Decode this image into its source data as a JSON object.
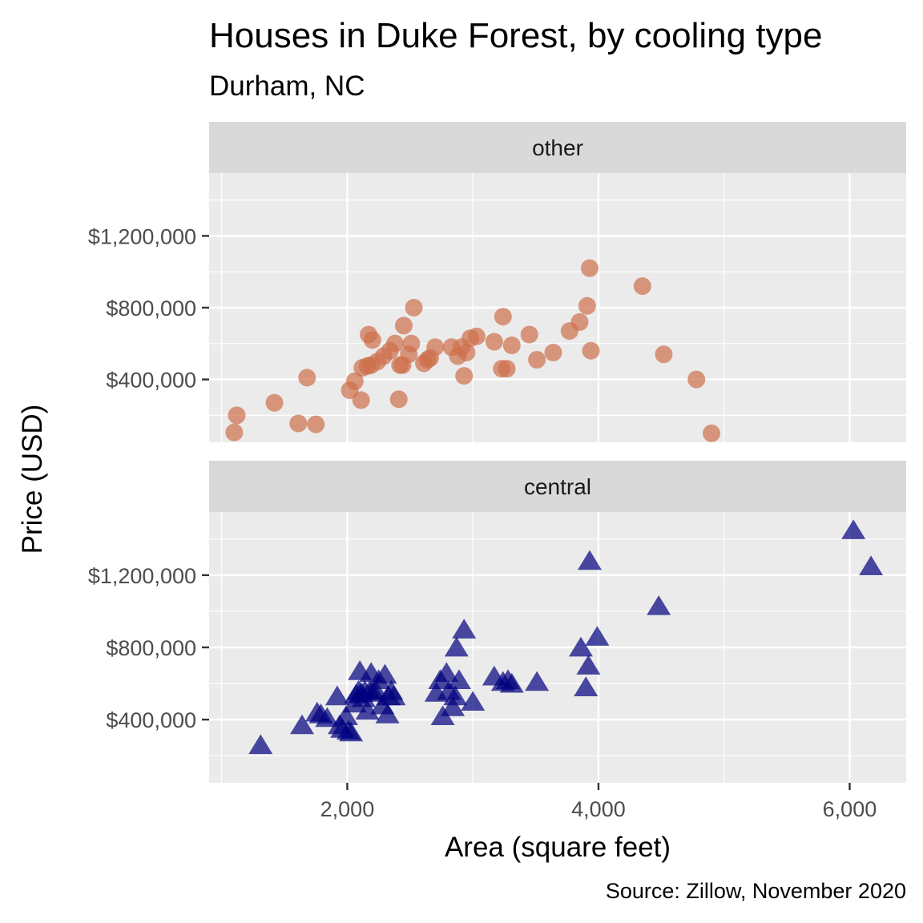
{
  "chart_data": {
    "type": "scatter",
    "title": "Houses in Duke Forest, by cooling type",
    "subtitle": "Durham, NC",
    "caption": "Source: Zillow, November 2020",
    "xlabel": "Area (square feet)",
    "ylabel": "Price (USD)",
    "xlim": [
      900,
      6450
    ],
    "ylim": [
      50000,
      1550000
    ],
    "x_ticks": [
      2000,
      4000,
      6000
    ],
    "x_tick_labels": [
      "2,000",
      "4,000",
      "6,000"
    ],
    "y_ticks": [
      400000,
      800000,
      1200000
    ],
    "y_tick_labels": [
      "$400,000",
      "$800,000",
      "$1,200,000"
    ],
    "grid": true,
    "facets": [
      {
        "label": "other",
        "color": "#cd6f4c",
        "marker": "circle",
        "points": [
          [
            1100,
            105000
          ],
          [
            1120,
            200000
          ],
          [
            1420,
            270000
          ],
          [
            1610,
            155000
          ],
          [
            1680,
            410000
          ],
          [
            1750,
            150000
          ],
          [
            2020,
            340000
          ],
          [
            2060,
            390000
          ],
          [
            2110,
            285000
          ],
          [
            2120,
            465000
          ],
          [
            2160,
            475000
          ],
          [
            2170,
            650000
          ],
          [
            2190,
            480000
          ],
          [
            2200,
            620000
          ],
          [
            2240,
            500000
          ],
          [
            2290,
            530000
          ],
          [
            2340,
            560000
          ],
          [
            2380,
            600000
          ],
          [
            2410,
            290000
          ],
          [
            2420,
            480000
          ],
          [
            2440,
            480000
          ],
          [
            2450,
            700000
          ],
          [
            2490,
            540000
          ],
          [
            2510,
            600000
          ],
          [
            2530,
            800000
          ],
          [
            2610,
            490000
          ],
          [
            2640,
            510000
          ],
          [
            2660,
            520000
          ],
          [
            2700,
            580000
          ],
          [
            2830,
            580000
          ],
          [
            2880,
            530000
          ],
          [
            2910,
            580000
          ],
          [
            2930,
            420000
          ],
          [
            2950,
            550000
          ],
          [
            2980,
            630000
          ],
          [
            3030,
            640000
          ],
          [
            3170,
            610000
          ],
          [
            3230,
            460000
          ],
          [
            3240,
            750000
          ],
          [
            3270,
            460000
          ],
          [
            3310,
            590000
          ],
          [
            3450,
            650000
          ],
          [
            3510,
            510000
          ],
          [
            3640,
            550000
          ],
          [
            3770,
            670000
          ],
          [
            3850,
            720000
          ],
          [
            3910,
            810000
          ],
          [
            3930,
            1020000
          ],
          [
            3940,
            560000
          ],
          [
            4350,
            920000
          ],
          [
            4520,
            540000
          ],
          [
            4780,
            400000
          ],
          [
            4900,
            100000
          ]
        ]
      },
      {
        "label": "central",
        "color": "#00007f",
        "marker": "triangle",
        "points": [
          [
            1310,
            260000
          ],
          [
            1640,
            370000
          ],
          [
            1760,
            440000
          ],
          [
            1790,
            430000
          ],
          [
            1840,
            410000
          ],
          [
            1920,
            530000
          ],
          [
            1940,
            370000
          ],
          [
            1960,
            350000
          ],
          [
            1990,
            420000
          ],
          [
            2010,
            340000
          ],
          [
            2030,
            330000
          ],
          [
            2060,
            490000
          ],
          [
            2070,
            540000
          ],
          [
            2090,
            560000
          ],
          [
            2100,
            670000
          ],
          [
            2110,
            550000
          ],
          [
            2130,
            520000
          ],
          [
            2140,
            560000
          ],
          [
            2160,
            450000
          ],
          [
            2180,
            560000
          ],
          [
            2190,
            660000
          ],
          [
            2210,
            550000
          ],
          [
            2230,
            560000
          ],
          [
            2250,
            620000
          ],
          [
            2280,
            480000
          ],
          [
            2300,
            650000
          ],
          [
            2320,
            430000
          ],
          [
            2330,
            530000
          ],
          [
            2350,
            560000
          ],
          [
            2370,
            530000
          ],
          [
            2710,
            550000
          ],
          [
            2740,
            620000
          ],
          [
            2760,
            420000
          ],
          [
            2790,
            660000
          ],
          [
            2810,
            560000
          ],
          [
            2840,
            470000
          ],
          [
            2860,
            530000
          ],
          [
            2870,
            800000
          ],
          [
            2890,
            620000
          ],
          [
            2930,
            900000
          ],
          [
            3000,
            500000
          ],
          [
            3170,
            640000
          ],
          [
            3240,
            610000
          ],
          [
            3280,
            620000
          ],
          [
            3310,
            600000
          ],
          [
            3510,
            610000
          ],
          [
            3860,
            800000
          ],
          [
            3900,
            580000
          ],
          [
            3920,
            700000
          ],
          [
            3930,
            1280000
          ],
          [
            3990,
            860000
          ],
          [
            4480,
            1030000
          ],
          [
            6030,
            1450000
          ],
          [
            6170,
            1250000
          ]
        ]
      }
    ]
  }
}
